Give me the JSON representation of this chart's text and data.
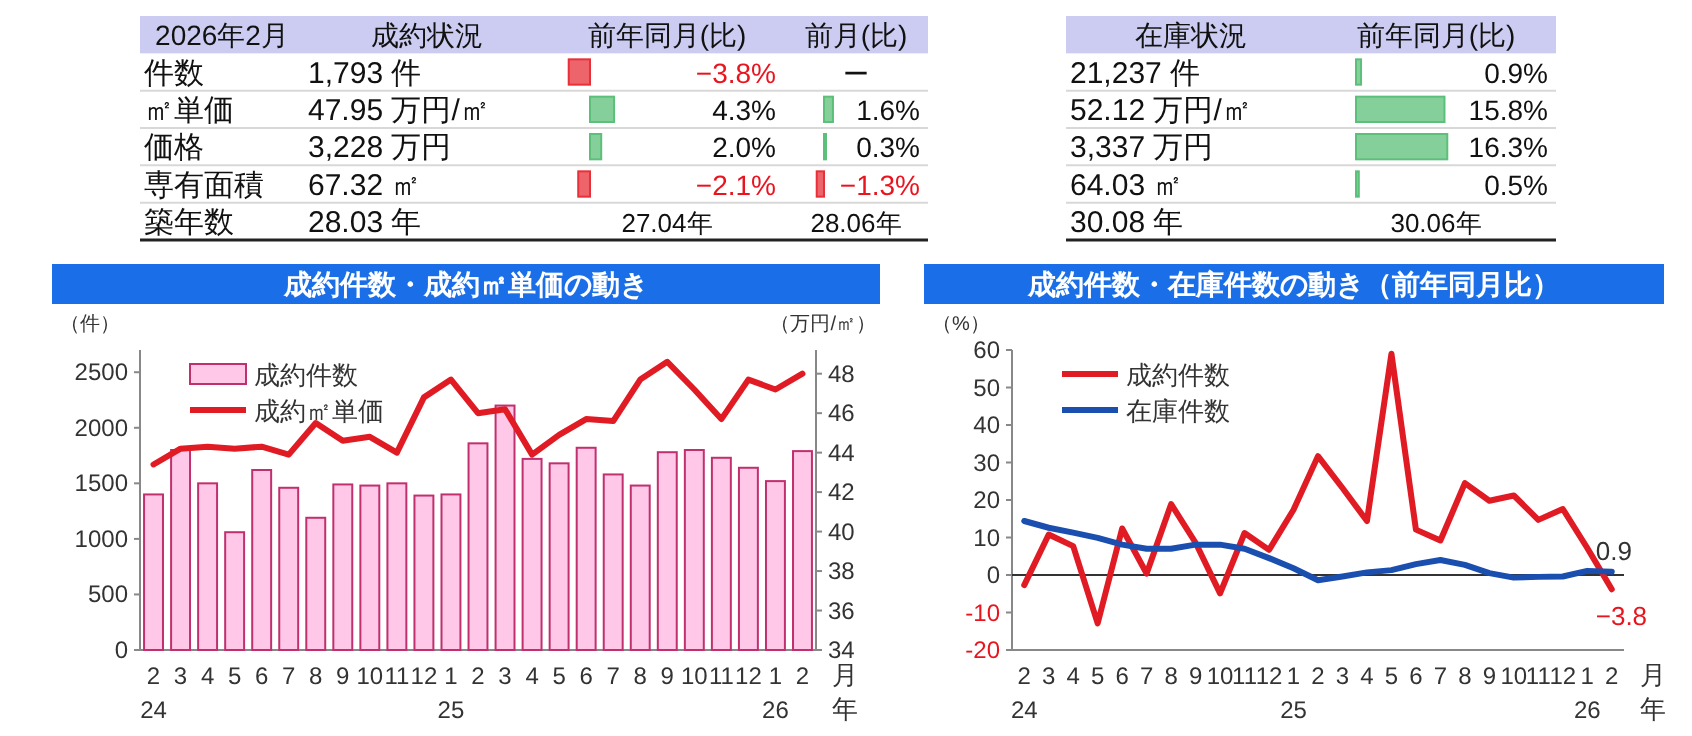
{
  "chart_data": [
    {
      "type": "other",
      "categories": [
        "件数",
        "㎡単価",
        "価格",
        "専有面積",
        "築年数"
      ],
      "annotations": [
        "2026年2月",
        "成約状況",
        "1,793 件",
        "47.95 万円/㎡",
        "3,228 万円",
        "67.32 ㎡",
        "28.03 年"
      ],
      "series": [
        {
          "name": "前年同月(比)",
          "values": [
            -3.8,
            4.3,
            2.0,
            -2.1,
            null
          ],
          "colors": [
            "#e8303a",
            "#5cbf7a",
            "#5cbf7a",
            "#e8303a",
            null
          ],
          "value_labels": [
            "−3.8%",
            "4.3%",
            "2.0%",
            "−2.1%",
            "27.04年"
          ]
        },
        {
          "name": "前月(比)",
          "values": [
            null,
            1.6,
            0.3,
            -1.3,
            null
          ],
          "colors": [
            null,
            "#5cbf7a",
            "#5cbf7a",
            "#e8303a",
            null
          ],
          "value_labels": [
            "ー",
            "1.6%",
            "0.3%",
            "−1.3%",
            "28.06年"
          ]
        }
      ]
    },
    {
      "type": "other",
      "annotations": [
        "在庫状況",
        "21,237 件",
        "52.12 万円/㎡",
        "3,337 万円",
        "64.03 ㎡",
        "30.08 年"
      ],
      "series": [
        {
          "name": "前年同月(比)",
          "values": [
            0.9,
            15.8,
            16.3,
            0.5,
            null
          ],
          "colors": [
            "#5cbf7a",
            "#5cbf7a",
            "#5cbf7a",
            "#5cbf7a",
            null
          ],
          "value_labels": [
            "0.9%",
            "15.8%",
            "16.3%",
            "0.5%",
            "30.06年"
          ]
        }
      ]
    },
    {
      "type": "bar",
      "title": "成約件数・成約㎡単価の動き",
      "ylabel": "（件）",
      "y2label": "（万円/㎡）",
      "xlabel": "月年",
      "legend": "top left",
      "categories": [
        "2\n24",
        "3",
        "4",
        "5",
        "6",
        "7",
        "8",
        "9",
        "10",
        "11",
        "12",
        "1\n25",
        "2",
        "3",
        "4",
        "5",
        "6",
        "7",
        "8",
        "9",
        "10",
        "11",
        "12",
        "1\n26",
        "2"
      ],
      "ylim": [
        0,
        2700
      ],
      "yticks": [
        0,
        500,
        1000,
        1500,
        2000,
        2500
      ],
      "y2lim": [
        34,
        49.2
      ],
      "y2ticks": [
        34,
        36,
        38,
        40,
        42,
        44,
        46,
        48
      ],
      "series": [
        {
          "name": "成約件数",
          "color": "#ffc8e8",
          "values": [
            1400,
            1800,
            1500,
            1060,
            1620,
            1460,
            1190,
            1490,
            1480,
            1500,
            1390,
            1400,
            1860,
            2200,
            1720,
            1680,
            1820,
            1580,
            1480,
            1780,
            1800,
            1730,
            1640,
            1520,
            1790
          ]
        },
        {
          "name": "成約㎡単価",
          "type": "line",
          "axis": "y2",
          "color": "#e01b24",
          "values": [
            43.4,
            44.2,
            44.3,
            44.2,
            44.3,
            43.9,
            45.5,
            44.6,
            44.8,
            44.0,
            46.8,
            47.7,
            46.0,
            46.2,
            43.9,
            44.9,
            45.7,
            45.6,
            47.7,
            48.6,
            47.2,
            45.7,
            47.7,
            47.2,
            48.0
          ]
        }
      ]
    },
    {
      "type": "line",
      "title": "成約件数・在庫件数の動き（前年同月比）",
      "ylabel": "（%）",
      "xlabel": "月年",
      "legend": "top left",
      "categories": [
        "2\n24",
        "3",
        "4",
        "5",
        "6",
        "7",
        "8",
        "9",
        "10",
        "11",
        "12",
        "1\n25",
        "2",
        "3",
        "4",
        "5",
        "6",
        "7",
        "8",
        "9",
        "10",
        "11",
        "12",
        "1\n26",
        "2"
      ],
      "ylim": [
        -20,
        60
      ],
      "yticks": [
        -20,
        -10,
        0,
        10,
        20,
        30,
        40,
        50,
        60
      ],
      "ref_lines": [
        {
          "axis": "y",
          "value": 0,
          "color": "#333333"
        }
      ],
      "series": [
        {
          "name": "成約件数",
          "color": "#e01b24",
          "values": [
            -2.7,
            10.8,
            7.7,
            -12.9,
            12.4,
            0.4,
            18.9,
            8.6,
            -4.9,
            11.2,
            6.7,
            17.4,
            31.7,
            23.2,
            14.4,
            59.0,
            12.1,
            9.2,
            24.5,
            19.8,
            21.2,
            14.7,
            17.6,
            7.2,
            -3.8
          ],
          "value_labels": [
            null,
            null,
            null,
            null,
            null,
            null,
            null,
            null,
            null,
            null,
            null,
            null,
            null,
            null,
            null,
            null,
            null,
            null,
            null,
            null,
            null,
            null,
            null,
            null,
            "−3.8"
          ]
        },
        {
          "name": "在庫件数",
          "color": "#1a4fb0",
          "values": [
            14.4,
            12.6,
            11.3,
            9.9,
            8.1,
            7.0,
            7.0,
            8.1,
            8.1,
            7.0,
            4.5,
            1.8,
            -1.4,
            -0.4,
            0.7,
            1.3,
            2.9,
            4.0,
            2.7,
            0.5,
            -0.7,
            -0.5,
            -0.4,
            1.1,
            0.9
          ],
          "value_labels": [
            null,
            null,
            null,
            null,
            null,
            null,
            null,
            null,
            null,
            null,
            null,
            null,
            null,
            null,
            null,
            null,
            null,
            null,
            null,
            null,
            null,
            null,
            null,
            null,
            "0.9"
          ]
        }
      ]
    }
  ]
}
